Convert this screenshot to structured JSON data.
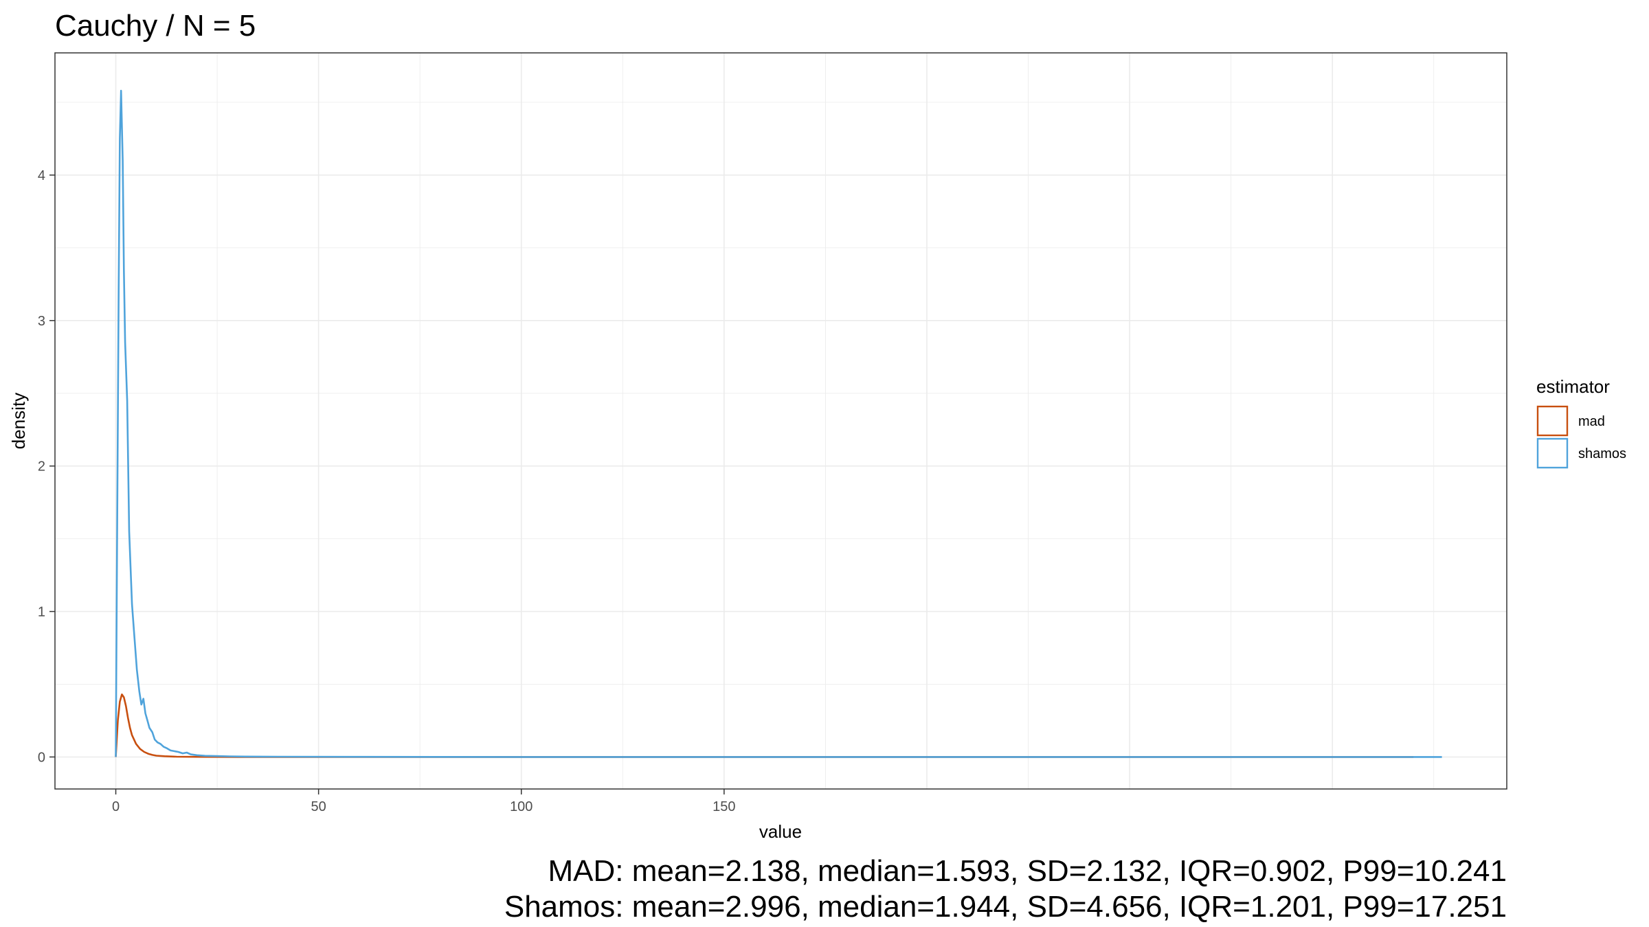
{
  "chart_data": {
    "type": "line",
    "title": "Cauchy / N = 5",
    "xlabel": "value",
    "ylabel": "density",
    "xlim": [
      -15,
      343
    ],
    "ylim": [
      -0.22,
      4.84
    ],
    "x_ticks": [
      0,
      50,
      100,
      150
    ],
    "y_ticks": [
      0,
      1,
      2,
      3,
      4
    ],
    "grid": true,
    "legend": {
      "title": "estimator",
      "position": "right"
    },
    "series": [
      {
        "name": "mad",
        "color": "#C84F0F",
        "x": [
          0,
          0.5,
          1,
          1.5,
          2,
          2.5,
          3,
          3.5,
          4,
          5,
          6,
          7,
          8,
          9,
          10,
          12,
          15,
          20,
          30,
          50,
          80,
          120,
          160,
          200,
          250,
          300,
          320
        ],
        "y": [
          0.0,
          0.25,
          0.38,
          0.43,
          0.41,
          0.35,
          0.27,
          0.2,
          0.15,
          0.09,
          0.055,
          0.035,
          0.022,
          0.014,
          0.009,
          0.005,
          0.002,
          0.001,
          0.0,
          0.0,
          0.0,
          0.0,
          0.0,
          0.0,
          0.0,
          0.0,
          0.0
        ]
      },
      {
        "name": "shamos",
        "color": "#4FA3DB",
        "x": [
          0,
          0.3,
          0.7,
          1.0,
          1.3,
          1.7,
          2.0,
          2.3,
          2.8,
          3.3,
          4.0,
          4.6,
          5.2,
          5.8,
          6.3,
          6.8,
          7.3,
          7.8,
          8.3,
          9.0,
          9.6,
          10.3,
          11.0,
          11.8,
          12.6,
          13.5,
          14.4,
          15.4,
          16.5,
          17.5,
          18.5,
          20,
          22,
          25,
          28,
          32,
          40,
          60,
          100,
          150,
          200,
          250,
          300,
          327
        ],
        "y": [
          0.0,
          1.4,
          3.2,
          4.25,
          4.58,
          4.1,
          3.35,
          2.85,
          2.45,
          1.55,
          1.05,
          0.82,
          0.6,
          0.45,
          0.36,
          0.4,
          0.3,
          0.25,
          0.2,
          0.17,
          0.12,
          0.1,
          0.09,
          0.07,
          0.06,
          0.045,
          0.04,
          0.035,
          0.025,
          0.03,
          0.018,
          0.012,
          0.008,
          0.006,
          0.004,
          0.003,
          0.002,
          0.001,
          0.0,
          0.0,
          0.0,
          0.0,
          0.0,
          0.0
        ]
      }
    ],
    "captions": [
      "MAD: mean=2.138, median=1.593, SD=2.132, IQR=0.902, P99=10.241",
      "Shamos: mean=2.996, median=1.944, SD=4.656, IQR=1.201, P99=17.251"
    ]
  }
}
